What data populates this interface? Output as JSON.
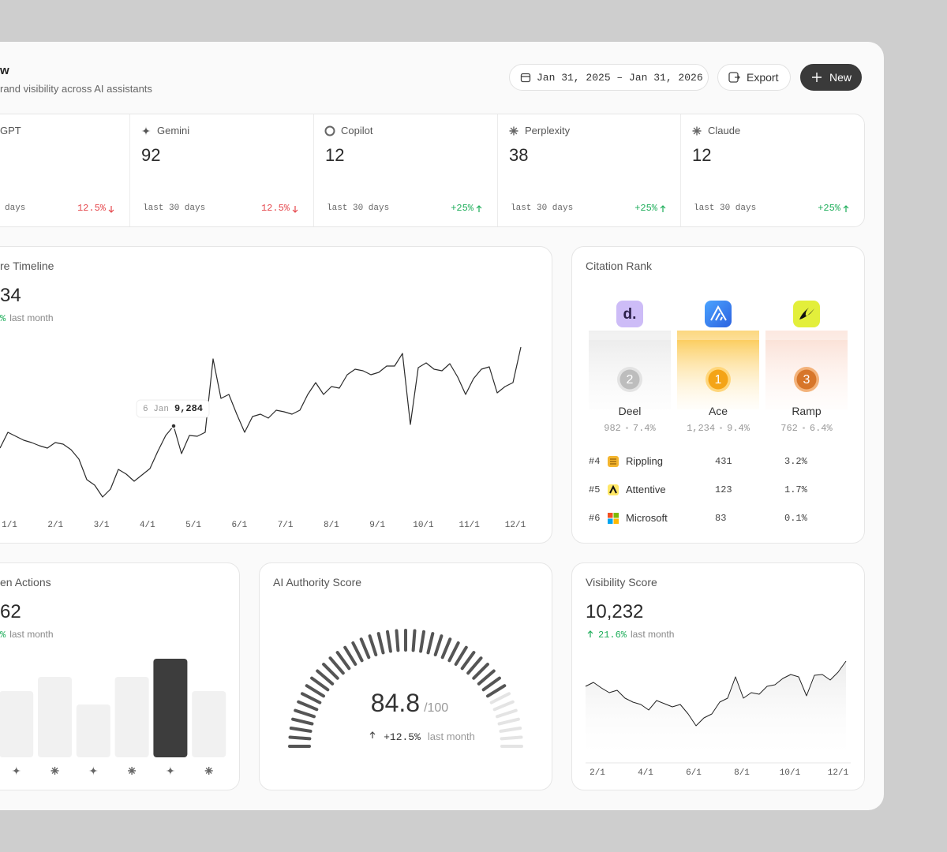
{
  "header": {
    "title": "w",
    "subtitle": "rand visibility across AI assistants"
  },
  "toolbar": {
    "date_range": "Jan 31, 2025 – Jan 31, 2026",
    "export": "Export",
    "new": "New"
  },
  "kpis": [
    {
      "name": "GPT",
      "footer": "days",
      "change": "12.5%",
      "direction": "down"
    },
    {
      "name": "Gemini",
      "value": 92,
      "footer": "last 30 days",
      "change": "12.5%",
      "direction": "down"
    },
    {
      "name": "Copilot",
      "value": 12,
      "footer": "last 30 days",
      "change": "+25%",
      "direction": "up"
    },
    {
      "name": "Perplexity",
      "value": 38,
      "footer": "last 30 days",
      "change": "+25%",
      "direction": "up"
    },
    {
      "name": "Claude",
      "value": 12,
      "footer": "last 30 days",
      "change": "+25%",
      "direction": "up"
    }
  ],
  "citation_rank": {
    "title": "Citation Rank",
    "podium": [
      {
        "name": "Deel",
        "rank": 2,
        "count": "982",
        "share": "7.4%",
        "logo_text": "d."
      },
      {
        "name": "Ace",
        "rank": 1,
        "count": "1,234",
        "share": "9.4%"
      },
      {
        "name": "Ramp",
        "rank": 3,
        "count": "762",
        "share": "6.4%"
      }
    ],
    "rows": [
      {
        "rank": "#4",
        "name": "Rippling",
        "count": 431,
        "share": "3.2%"
      },
      {
        "rank": "#5",
        "name": "Attentive",
        "count": 123,
        "share": "1.7%"
      },
      {
        "rank": "#6",
        "name": "Microsoft",
        "count": 83,
        "share": "0.1%"
      }
    ]
  },
  "chart_data": [
    {
      "type": "line",
      "title": "re Timeline",
      "value": "34",
      "change": "%",
      "change_note": "last month",
      "color": "#2b2b2b",
      "x_labels": [
        "1/1",
        "2/1",
        "3/1",
        "4/1",
        "5/1",
        "6/1",
        "7/1",
        "8/1",
        "9/1",
        "10/1",
        "11/1",
        "12/1"
      ],
      "values": [
        8724,
        9124,
        9024,
        8924,
        8864,
        8784,
        8724,
        8864,
        8824,
        8684,
        8444,
        7924,
        7784,
        7484,
        7684,
        8184,
        8064,
        7884,
        8044,
        8204,
        8644,
        9044,
        9284,
        8584,
        9044,
        9024,
        9124,
        10984,
        9984,
        10084,
        9584,
        9124,
        9524,
        9584,
        9484,
        9684,
        9644,
        9584,
        9684,
        10084,
        10384,
        10084,
        10284,
        10244,
        10584,
        10724,
        10684,
        10584,
        10644,
        10804,
        10804,
        11124,
        9324,
        10764,
        10884,
        10724,
        10684,
        10864,
        10524,
        10084,
        10484,
        10724,
        10784,
        10124,
        10284,
        10384,
        11284
      ],
      "tooltip": {
        "label": "6 Jan",
        "value": 9284,
        "value_label": "9,284"
      }
    },
    {
      "type": "bar",
      "title": "en Actions",
      "value": "62",
      "change": "%",
      "change_note": "last month",
      "values": [
        84,
        102,
        67,
        102,
        125,
        84
      ],
      "colors": [
        "#f1f1f1",
        "#f1f1f1",
        "#f1f1f1",
        "#f1f1f1",
        "#3d3d3d",
        "#f1f1f1"
      ]
    },
    {
      "type": "gauge",
      "title": "AI Authority Score",
      "value": 84.8,
      "max": {
        "value": 100,
        "label": "/100"
      },
      "change": "+12.5%",
      "change_note": "last month",
      "color": "#555555",
      "track_color": "#e4e4e4"
    },
    {
      "type": "area",
      "title": "Visibility Score",
      "value": "10,232",
      "change": "21.6%",
      "change_note": "last month",
      "color": "#222222",
      "x_labels": [
        "2/1",
        "4/1",
        "6/1",
        "8/1",
        "10/1",
        "12/1"
      ],
      "values": [
        130,
        135,
        128,
        122,
        125,
        115,
        110,
        107,
        100,
        112,
        108,
        104,
        107,
        95,
        80,
        90,
        95,
        110,
        115,
        142,
        115,
        122,
        120,
        130,
        132,
        140,
        145,
        142,
        118,
        144,
        145,
        138,
        148,
        162
      ]
    }
  ]
}
